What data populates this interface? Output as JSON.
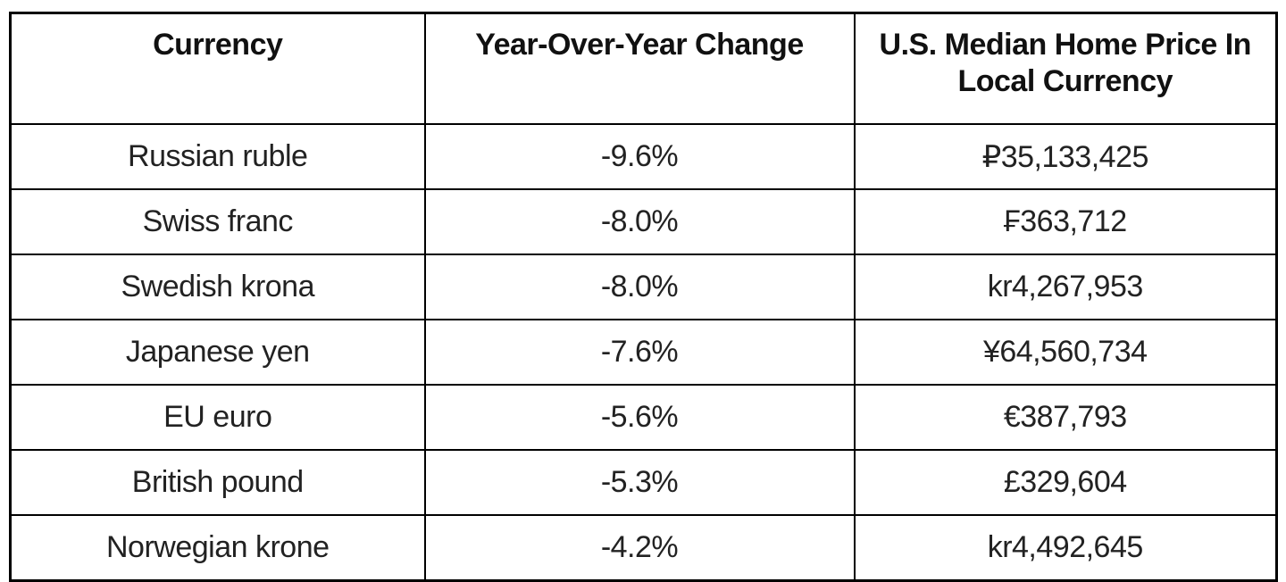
{
  "colors": {
    "border": "#000000",
    "text": "#222222",
    "header_text": "#111111",
    "background": "#ffffff"
  },
  "header": {
    "col1": "Currency",
    "col2": "Year-Over-Year Change",
    "col3_line1": "U.S. Median Home Price In",
    "col3_line2": "Local Currency"
  },
  "chart_data": {
    "type": "table",
    "title": "",
    "columns": [
      "Currency",
      "Year-Over-Year Change",
      "U.S. Median Home Price In Local Currency"
    ],
    "rows": [
      [
        "Russian ruble",
        "-9.6%",
        "₽35,133,425"
      ],
      [
        "Swiss franc",
        "-8.0%",
        "₣363,712"
      ],
      [
        "Swedish krona",
        "-8.0%",
        "kr4,267,953"
      ],
      [
        "Japanese yen",
        "-7.6%",
        "¥64,560,734"
      ],
      [
        "EU euro",
        "-5.6%",
        "€387,793"
      ],
      [
        "British pound",
        "-5.3%",
        "£329,604"
      ],
      [
        "Norwegian krone",
        "-4.2%",
        "kr4,492,645"
      ]
    ],
    "yoy_change_numeric": [
      -9.6,
      -8.0,
      -8.0,
      -7.6,
      -5.6,
      -5.3,
      -4.2
    ],
    "price_local_numeric": [
      35133425,
      363712,
      4267953,
      64560734,
      387793,
      329604,
      4492645
    ]
  }
}
